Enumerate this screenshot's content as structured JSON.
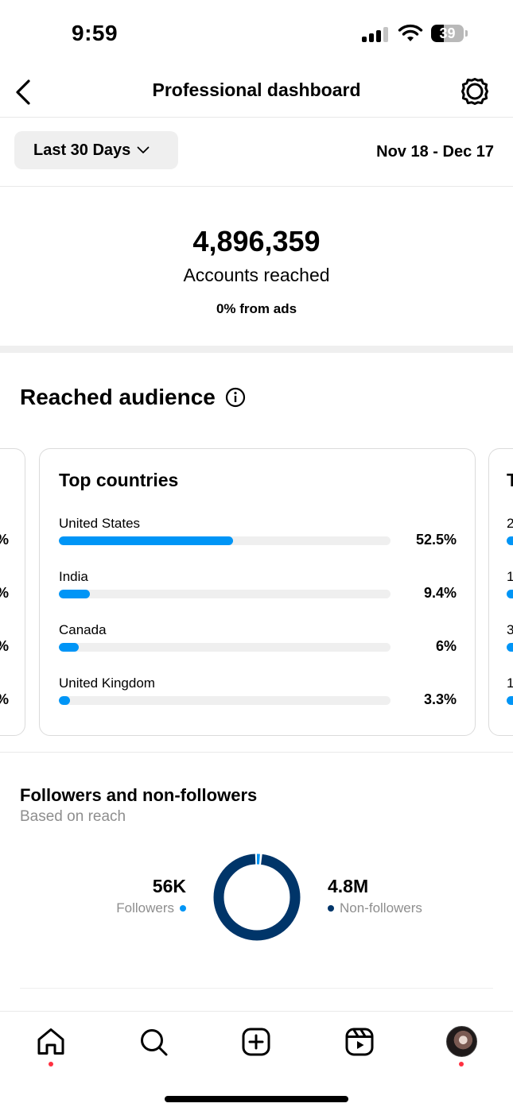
{
  "status_bar": {
    "time": "9:59",
    "battery": "39",
    "battery_level": 0.39,
    "signal_bars_filled": 3,
    "icons": [
      "signal-icon",
      "wifi-icon",
      "battery-icon"
    ]
  },
  "header": {
    "title": "Professional dashboard",
    "back_icon": "chevron-left-icon",
    "settings_icon": "settings-gear-icon"
  },
  "date_filter": {
    "range_label": "Last 30 Days",
    "date_range": "Nov 18 - Dec 17"
  },
  "reach": {
    "number": "4,896,359",
    "label": "Accounts reached",
    "ads": "0% from ads"
  },
  "audience": {
    "title": "Reached audience",
    "card": {
      "title": "Top countries",
      "countries": [
        {
          "name": "United States",
          "pct": "52.5%",
          "value": 52.5
        },
        {
          "name": "India",
          "pct": "9.4%",
          "value": 9.4
        },
        {
          "name": "Canada",
          "pct": "6%",
          "value": 6
        },
        {
          "name": "United Kingdom",
          "pct": "3.3%",
          "value": 3.3
        }
      ]
    },
    "left_peek_pcts": [
      "%",
      "%",
      "%",
      "%"
    ],
    "right_peek": {
      "title": "T",
      "nums": [
        "2",
        "1",
        "3",
        "1"
      ]
    }
  },
  "followers": {
    "title": "Followers and non-followers",
    "subtitle": "Based on reach",
    "followers_value": "56K",
    "followers_label": "Followers",
    "non_followers_value": "4.8M",
    "non_followers_label": "Non-followers",
    "followers_color": "#0095f6",
    "non_followers_color": "#003569",
    "followers_fraction": 0.0115
  },
  "bottom_nav": {
    "items": [
      "home-icon",
      "search-icon",
      "create-icon",
      "reels-icon",
      "profile-avatar"
    ]
  },
  "colors": {
    "accent": "#0095f6",
    "notification": "#ff3040"
  }
}
